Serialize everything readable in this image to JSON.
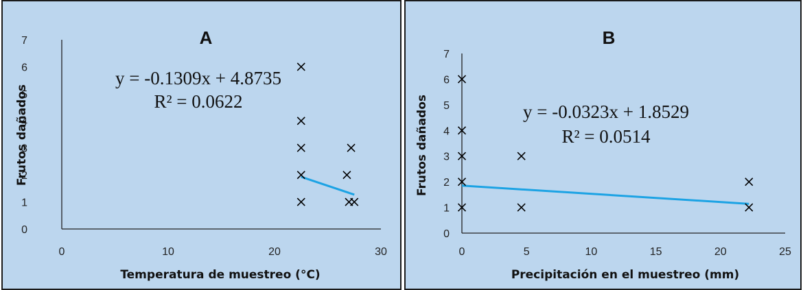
{
  "chart_data": [
    {
      "type": "scatter",
      "title": "A",
      "xlabel": "Temperatura de muestreo (°C)",
      "ylabel": "Frutos dañados",
      "xlim": [
        0,
        30
      ],
      "ylim": [
        0,
        7
      ],
      "xticks": [
        "0",
        "10",
        "20",
        "30"
      ],
      "yticks": [
        "0",
        "1",
        "2",
        "3",
        "4",
        "5",
        "6",
        "7"
      ],
      "points": [
        {
          "x": 22.5,
          "y": 6
        },
        {
          "x": 22.5,
          "y": 4
        },
        {
          "x": 22.5,
          "y": 3
        },
        {
          "x": 22.5,
          "y": 2
        },
        {
          "x": 22.5,
          "y": 1
        },
        {
          "x": 27.2,
          "y": 3
        },
        {
          "x": 26.8,
          "y": 2
        },
        {
          "x": 27.0,
          "y": 1
        },
        {
          "x": 27.5,
          "y": 1
        }
      ],
      "trendline": {
        "x": [
          22.5,
          27.5
        ],
        "y": [
          1.93,
          1.27
        ],
        "color": "#1ca3e4"
      },
      "equation": "y = -0.1309x + 4.8735",
      "r_squared": "R² = 0.0622",
      "grid": false
    },
    {
      "type": "scatter",
      "title": "B",
      "xlabel": "Precipitación en  el muestreo (mm)",
      "ylabel": "Frutos dañados",
      "xlim": [
        0,
        25
      ],
      "ylim": [
        0,
        7
      ],
      "xticks": [
        "0",
        "5",
        "10",
        "15",
        "20",
        "25"
      ],
      "yticks": [
        "0",
        "1",
        "2",
        "3",
        "4",
        "5",
        "6",
        "7"
      ],
      "points": [
        {
          "x": 0,
          "y": 6
        },
        {
          "x": 0,
          "y": 4
        },
        {
          "x": 0,
          "y": 3
        },
        {
          "x": 0,
          "y": 2
        },
        {
          "x": 0,
          "y": 1
        },
        {
          "x": 4.6,
          "y": 3
        },
        {
          "x": 4.6,
          "y": 1
        },
        {
          "x": 22.2,
          "y": 2
        },
        {
          "x": 22.2,
          "y": 1
        }
      ],
      "trendline": {
        "x": [
          0,
          22.2
        ],
        "y": [
          1.85,
          1.14
        ],
        "color": "#1ca3e4"
      },
      "equation": "y = -0.0323x + 1.8529",
      "r_squared": "R² = 0.0514",
      "grid": false
    }
  ]
}
